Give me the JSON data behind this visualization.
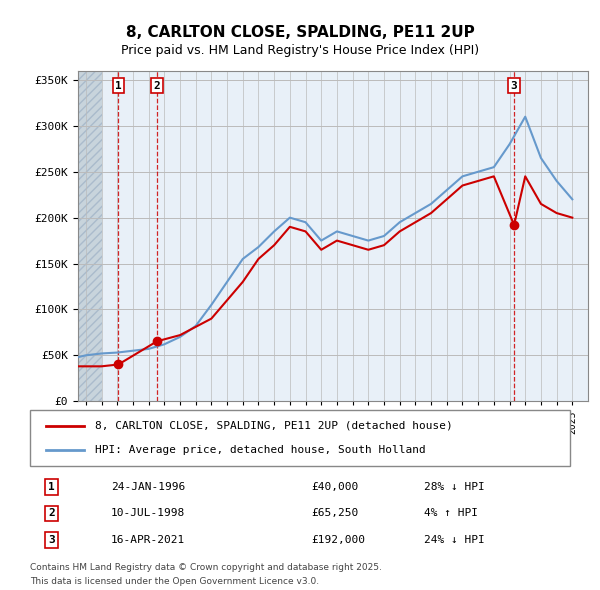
{
  "title": "8, CARLTON CLOSE, SPALDING, PE11 2UP",
  "subtitle": "Price paid vs. HM Land Registry's House Price Index (HPI)",
  "legend_line1": "8, CARLTON CLOSE, SPALDING, PE11 2UP (detached house)",
  "legend_line2": "HPI: Average price, detached house, South Holland",
  "footer1": "Contains HM Land Registry data © Crown copyright and database right 2025.",
  "footer2": "This data is licensed under the Open Government Licence v3.0.",
  "sale_color": "#cc0000",
  "hpi_color": "#6699cc",
  "background_chart": "#e8f0f8",
  "background_hatch": "#d0d8e0",
  "grid_color": "#bbbbbb",
  "vline_color": "#cc0000",
  "marker_color": "#cc0000",
  "ylim": [
    0,
    360000
  ],
  "yticks": [
    0,
    50000,
    100000,
    150000,
    200000,
    250000,
    300000,
    350000
  ],
  "ytick_labels": [
    "£0",
    "£50K",
    "£100K",
    "£150K",
    "£200K",
    "£250K",
    "£300K",
    "£350K"
  ],
  "xmin": 1993.5,
  "xmax": 2026.0,
  "xtick_start": 1994,
  "xtick_end": 2025,
  "sales": [
    {
      "year": 1996.07,
      "price": 40000,
      "label": "1",
      "pct": "28%",
      "dir": "↓",
      "date": "24-JAN-1996"
    },
    {
      "year": 1998.53,
      "price": 65250,
      "label": "2",
      "pct": "4%",
      "dir": "↑",
      "date": "10-JUL-1998"
    },
    {
      "year": 2021.29,
      "price": 192000,
      "label": "3",
      "pct": "24%",
      "dir": "↓",
      "date": "16-APR-2021"
    }
  ],
  "hpi_years": [
    1993.5,
    1994,
    1995,
    1996,
    1997,
    1998,
    1999,
    2000,
    2001,
    2002,
    2003,
    2004,
    2005,
    2006,
    2007,
    2008,
    2009,
    2010,
    2011,
    2012,
    2013,
    2014,
    2015,
    2016,
    2017,
    2018,
    2019,
    2020,
    2021,
    2022,
    2023,
    2024,
    2025
  ],
  "hpi_values": [
    48000,
    50000,
    52000,
    53000,
    55000,
    57000,
    62000,
    70000,
    82000,
    105000,
    130000,
    155000,
    168000,
    185000,
    200000,
    195000,
    175000,
    185000,
    180000,
    175000,
    180000,
    195000,
    205000,
    215000,
    230000,
    245000,
    250000,
    255000,
    280000,
    310000,
    265000,
    240000,
    220000
  ],
  "sale_years": [
    1993.5,
    1994,
    1995,
    1996.07,
    1998.53,
    2000,
    2002,
    2004,
    2005,
    2006,
    2007,
    2008,
    2009,
    2010,
    2011,
    2012,
    2013,
    2014,
    2015,
    2016,
    2017,
    2018,
    2019,
    2020,
    2021.29,
    2022,
    2023,
    2024,
    2025
  ],
  "sale_line_values": [
    38000,
    38000,
    38000,
    40000,
    65250,
    72000,
    90000,
    130000,
    155000,
    170000,
    190000,
    185000,
    165000,
    175000,
    170000,
    165000,
    170000,
    185000,
    195000,
    205000,
    220000,
    235000,
    240000,
    245000,
    192000,
    245000,
    215000,
    205000,
    200000
  ],
  "hatch_xmax": 1995.0
}
